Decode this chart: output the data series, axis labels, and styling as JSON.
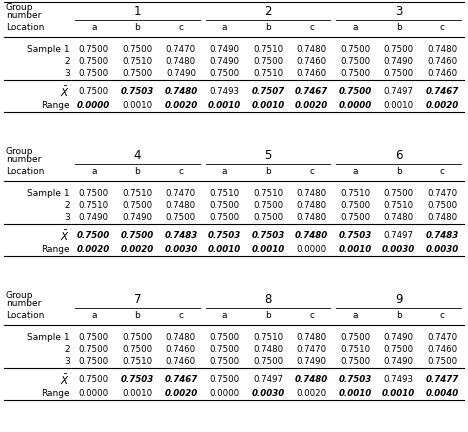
{
  "sections": [
    {
      "groups": [
        "1",
        "2",
        "3"
      ],
      "samples": [
        [
          "0.7500",
          "0.7500",
          "0.7470",
          "0.7490",
          "0.7510",
          "0.7480",
          "0.7500",
          "0.7500",
          "0.7480"
        ],
        [
          "0.7500",
          "0.7510",
          "0.7480",
          "0.7490",
          "0.7500",
          "0.7460",
          "0.7500",
          "0.7490",
          "0.7460"
        ],
        [
          "0.7500",
          "0.7500",
          "0.7490",
          "0.7500",
          "0.7510",
          "0.7460",
          "0.7500",
          "0.7500",
          "0.7460"
        ]
      ],
      "xbar": [
        "0.7500",
        "0.7503",
        "0.7480",
        "0.7493",
        "0.7507",
        "0.7467",
        "0.7500",
        "0.7497",
        "0.7467"
      ],
      "xbar_bold": [
        false,
        true,
        true,
        false,
        true,
        true,
        true,
        false,
        true
      ],
      "range_vals": [
        "0.0000",
        "0.0010",
        "0.0020",
        "0.0010",
        "0.0010",
        "0.0020",
        "0.0000",
        "0.0010",
        "0.0020"
      ],
      "range_bold": [
        true,
        false,
        true,
        true,
        true,
        true,
        true,
        false,
        true
      ]
    },
    {
      "groups": [
        "4",
        "5",
        "6"
      ],
      "samples": [
        [
          "0.7500",
          "0.7510",
          "0.7470",
          "0.7510",
          "0.7510",
          "0.7480",
          "0.7510",
          "0.7500",
          "0.7470"
        ],
        [
          "0.7510",
          "0.7500",
          "0.7480",
          "0.7500",
          "0.7500",
          "0.7480",
          "0.7500",
          "0.7510",
          "0.7500"
        ],
        [
          "0.7490",
          "0.7490",
          "0.7500",
          "0.7500",
          "0.7500",
          "0.7480",
          "0.7500",
          "0.7480",
          "0.7480"
        ]
      ],
      "xbar": [
        "0.7500",
        "0.7500",
        "0.7483",
        "0.7503",
        "0.7503",
        "0.7480",
        "0.7503",
        "0.7497",
        "0.7483"
      ],
      "xbar_bold": [
        true,
        true,
        true,
        true,
        true,
        true,
        true,
        false,
        true
      ],
      "range_vals": [
        "0.0020",
        "0.0020",
        "0.0030",
        "0.0010",
        "0.0010",
        "0.0000",
        "0.0010",
        "0.0030",
        "0.0030"
      ],
      "range_bold": [
        true,
        true,
        true,
        true,
        true,
        false,
        true,
        true,
        true
      ]
    },
    {
      "groups": [
        "7",
        "8",
        "9"
      ],
      "samples": [
        [
          "0.7500",
          "0.7500",
          "0.7480",
          "0.7500",
          "0.7510",
          "0.7480",
          "0.7500",
          "0.7490",
          "0.7470"
        ],
        [
          "0.7500",
          "0.7500",
          "0.7460",
          "0.7500",
          "0.7480",
          "0.7470",
          "0.7510",
          "0.7500",
          "0.7460"
        ],
        [
          "0.7500",
          "0.7510",
          "0.7460",
          "0.7500",
          "0.7500",
          "0.7490",
          "0.7500",
          "0.7490",
          "0.7500"
        ]
      ],
      "xbar": [
        "0.7500",
        "0.7503",
        "0.7467",
        "0.7500",
        "0.7497",
        "0.7480",
        "0.7503",
        "0.7493",
        "0.7477"
      ],
      "xbar_bold": [
        false,
        true,
        true,
        false,
        false,
        true,
        true,
        false,
        true
      ],
      "range_vals": [
        "0.0000",
        "0.0010",
        "0.0020",
        "0.0000",
        "0.0030",
        "0.0020",
        "0.0010",
        "0.0010",
        "0.0040"
      ],
      "range_bold": [
        false,
        false,
        true,
        false,
        true,
        false,
        true,
        true,
        true
      ]
    }
  ],
  "bg_color": "#ffffff",
  "text_color": "#000000",
  "fs_data": 6.2,
  "fs_label": 6.5,
  "fs_group": 8.5
}
